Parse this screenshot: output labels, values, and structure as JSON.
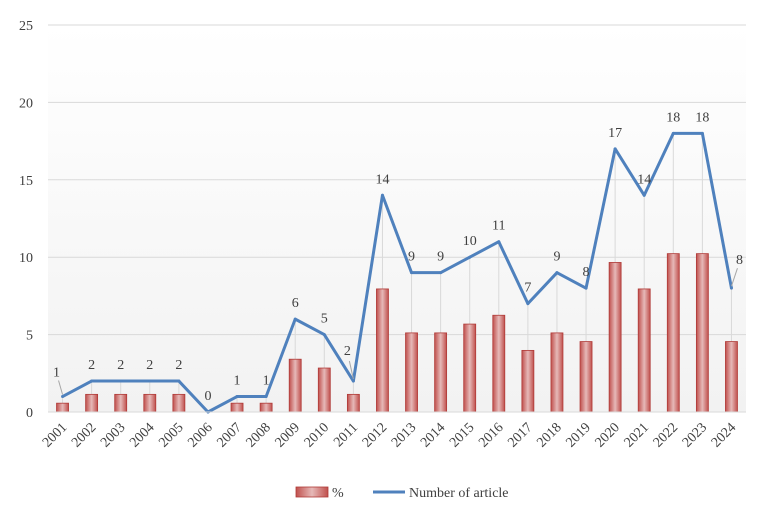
{
  "chart_data": {
    "type": "bar",
    "categories": [
      "2001",
      "2002",
      "2003",
      "2004",
      "2005",
      "2006",
      "2007",
      "2008",
      "2009",
      "2010",
      "2011",
      "2012",
      "2013",
      "2014",
      "2015",
      "2016",
      "2017",
      "2018",
      "2019",
      "2020",
      "2021",
      "2022",
      "2023",
      "2024"
    ],
    "series": [
      {
        "name": "%",
        "type": "bar",
        "color": "#d99694",
        "values": [
          0.57,
          1.14,
          1.14,
          1.14,
          1.14,
          0,
          0.57,
          0.57,
          3.41,
          2.84,
          1.14,
          7.95,
          5.11,
          5.11,
          5.68,
          6.25,
          3.98,
          5.11,
          4.55,
          9.66,
          7.95,
          10.23,
          10.23,
          4.55
        ]
      },
      {
        "name": "Number of article",
        "type": "line",
        "color": "#4f81bd",
        "values": [
          1,
          2,
          2,
          2,
          2,
          0,
          1,
          1,
          6,
          5,
          2,
          14,
          9,
          9,
          10,
          11,
          7,
          9,
          8,
          17,
          14,
          18,
          18,
          8
        ]
      }
    ],
    "ylim": [
      0,
      25
    ],
    "yticks": [
      "0",
      "5",
      "10",
      "15",
      "20",
      "25"
    ],
    "grid": true,
    "legend": "bottom"
  }
}
